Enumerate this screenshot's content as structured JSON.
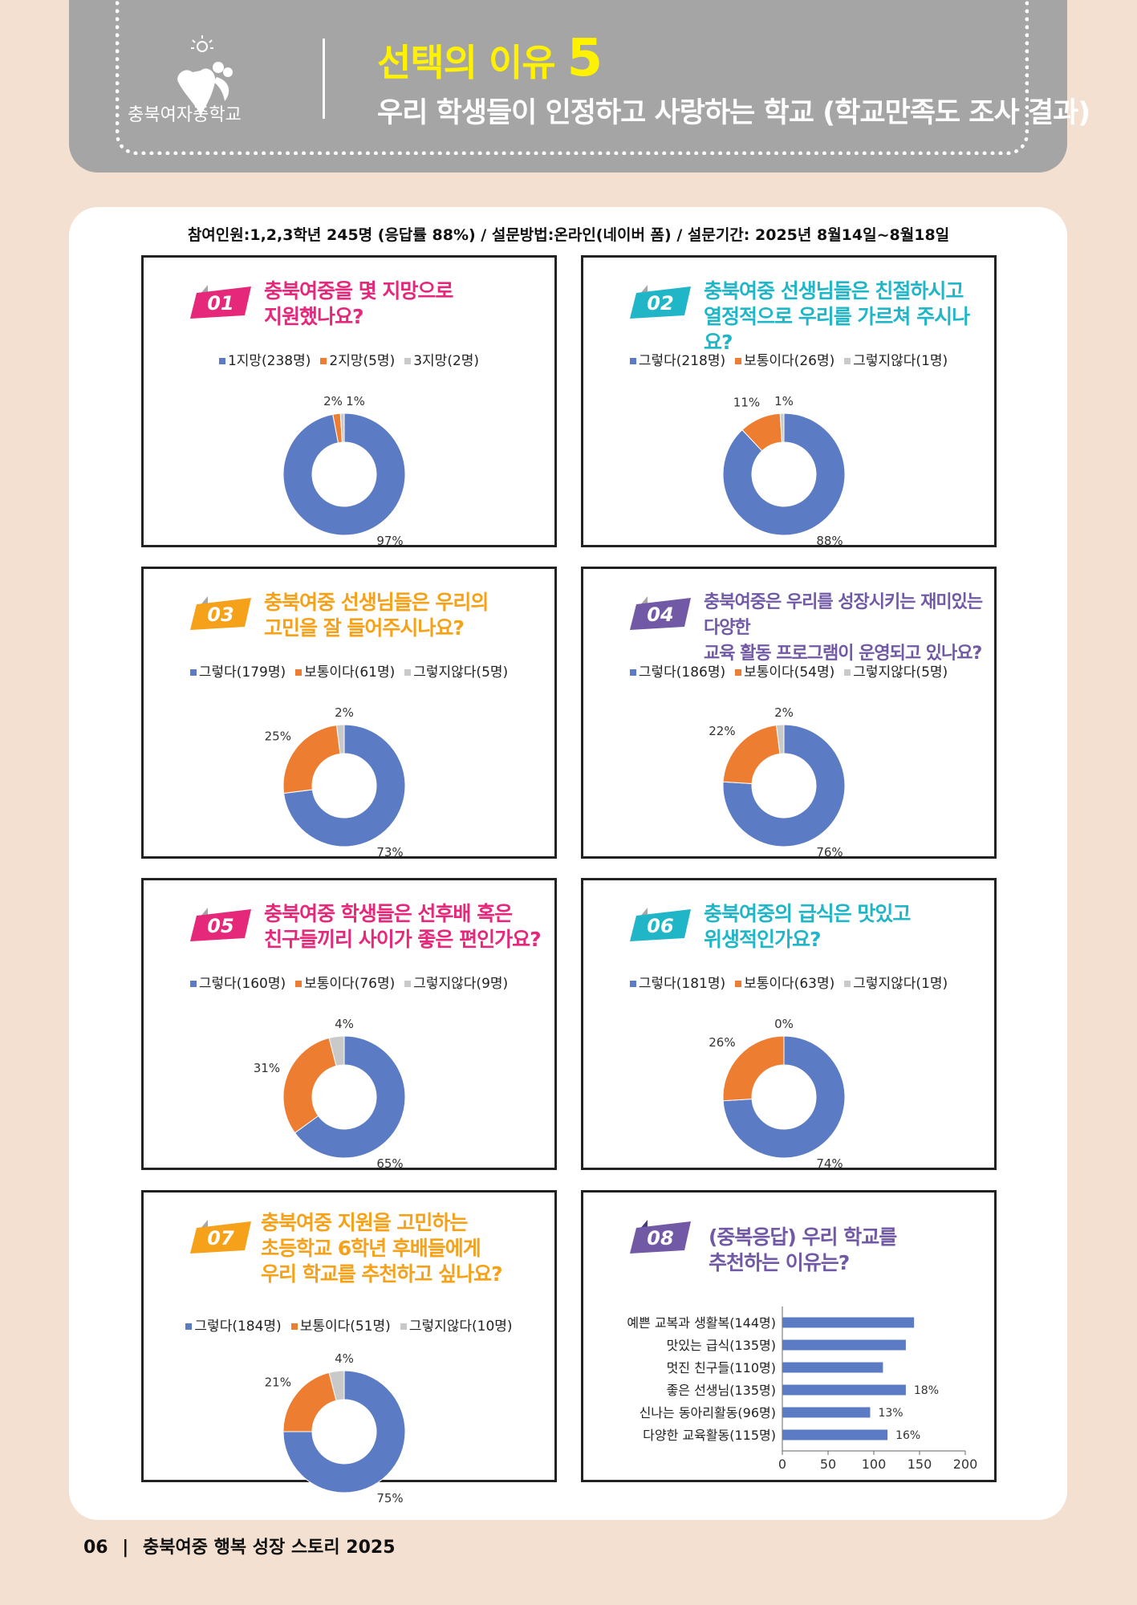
{
  "header": {
    "school": "충북여자중학교",
    "title": "선택의 이유",
    "title_number": "5",
    "subtitle": "우리 학생들이 인정하고 사랑하는 학교 (학교만족도 조사 결과)"
  },
  "info": "참여인원:1,2,3학년 245명 (응답률 88%) / 설문방법:온라인(네이버 폼) / 설문기간: 2025년 8월14일~8월18일",
  "colors": {
    "blue": "#5b7bc4",
    "orange": "#ed7d31",
    "gray": "#c9c9c9",
    "pink": "#e5287a",
    "teal": "#21b6c7",
    "amber": "#f5a11a",
    "purple": "#7159a6"
  },
  "questions": [
    {
      "num": "01",
      "line1": "충북여중을 몇 지망으로",
      "line2": "지원했나요?",
      "legend": [
        "1지망(238명)",
        "2지망(5명)",
        "3지망(2명)"
      ],
      "chart_data": {
        "type": "pie",
        "categories": [
          "1지망",
          "2지망",
          "3지망"
        ],
        "values": [
          97,
          2,
          1
        ],
        "labels": [
          "97%",
          "2%",
          "1%"
        ]
      }
    },
    {
      "num": "02",
      "line1": "충북여중 선생님들은 친절하시고",
      "line2": "열정적으로 우리를 가르쳐 주시나요?",
      "legend": [
        "그렇다(218명)",
        "보통이다(26명)",
        "그렇지않다(1명)"
      ],
      "chart_data": {
        "type": "pie",
        "categories": [
          "그렇다",
          "보통이다",
          "그렇지않다"
        ],
        "values": [
          88,
          11,
          1
        ],
        "labels": [
          "88%",
          "11%",
          "1%"
        ]
      }
    },
    {
      "num": "03",
      "line1": "충북여중 선생님들은 우리의",
      "line2": "고민을 잘 들어주시나요?",
      "legend": [
        "그렇다(179명)",
        "보통이다(61명)",
        "그렇지않다(5명)"
      ],
      "chart_data": {
        "type": "pie",
        "categories": [
          "그렇다",
          "보통이다",
          "그렇지않다"
        ],
        "values": [
          73,
          25,
          2
        ],
        "labels": [
          "73%",
          "25%",
          "2%"
        ]
      }
    },
    {
      "num": "04",
      "line1": "충북여중은 우리를 성장시키는 재미있는 다양한",
      "line2": "교육 활동 프로그램이 운영되고 있나요?",
      "legend": [
        "그렇다(186명)",
        "보통이다(54명)",
        "그렇지않다(5명)"
      ],
      "chart_data": {
        "type": "pie",
        "categories": [
          "그렇다",
          "보통이다",
          "그렇지않다"
        ],
        "values": [
          76,
          22,
          2
        ],
        "labels": [
          "76%",
          "22%",
          "2%"
        ]
      }
    },
    {
      "num": "05",
      "line1": "충북여중 학생들은 선후배 혹은",
      "line2": "친구들끼리 사이가 좋은 편인가요?",
      "legend": [
        "그렇다(160명)",
        "보통이다(76명)",
        "그렇지않다(9명)"
      ],
      "chart_data": {
        "type": "pie",
        "categories": [
          "그렇다",
          "보통이다",
          "그렇지않다"
        ],
        "values": [
          65,
          31,
          4
        ],
        "labels": [
          "65%",
          "31%",
          "4%"
        ]
      }
    },
    {
      "num": "06",
      "line1": "충북여중의 급식은 맛있고",
      "line2": "위생적인가요?",
      "legend": [
        "그렇다(181명)",
        "보통이다(63명)",
        "그렇지않다(1명)"
      ],
      "chart_data": {
        "type": "pie",
        "categories": [
          "그렇다",
          "보통이다",
          "그렇지않다"
        ],
        "values": [
          74,
          26,
          0
        ],
        "labels": [
          "74%",
          "26%",
          "0%"
        ]
      }
    },
    {
      "num": "07",
      "line1": "충북여중 지원을 고민하는",
      "line2": "초등학교 6학년 후배들에게",
      "line3": "우리 학교를 추천하고 싶나요?",
      "legend": [
        "그렇다(184명)",
        "보통이다(51명)",
        "그렇지않다(10명)"
      ],
      "chart_data": {
        "type": "pie",
        "categories": [
          "그렇다",
          "보통이다",
          "그렇지않다"
        ],
        "values": [
          75,
          21,
          4
        ],
        "labels": [
          "75%",
          "21%",
          "4%"
        ]
      }
    }
  ],
  "q8": {
    "num": "08",
    "line1": "(중복응답) 우리 학교를",
    "line2": "추천하는 이유는?",
    "chart_data": {
      "type": "bar",
      "orientation": "horizontal",
      "categories": [
        "예쁜 교복과 생활복(144명)",
        "맛있는 급식(135명)",
        "멋진 친구들(110명)",
        "좋은 선생님(135명)",
        "신나는 동아리활동(96명)",
        "다양한 교육활동(115명)"
      ],
      "values": [
        144,
        135,
        110,
        135,
        96,
        115
      ],
      "data_labels": [
        "",
        "",
        "",
        "18%",
        "13%",
        "16%"
      ],
      "xticks": [
        "0",
        "50",
        "100",
        "150",
        "200"
      ],
      "xlim": [
        0,
        200
      ]
    }
  },
  "footer": {
    "page": "06",
    "sep": "|",
    "text": "충북여중 행복 성장 스토리 2025"
  }
}
